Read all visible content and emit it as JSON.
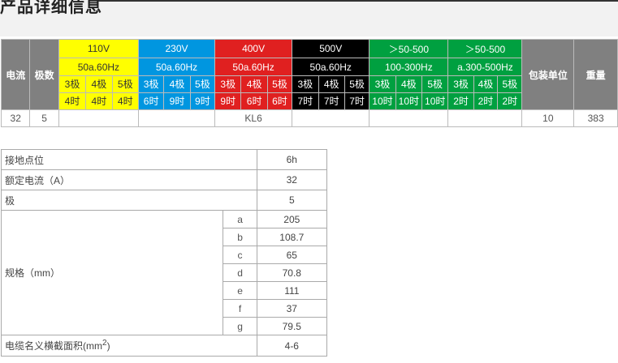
{
  "page": {
    "title": "产品详细信息"
  },
  "spec": {
    "col_current": "电流",
    "col_poles": "极数",
    "col_package": "包装单位",
    "col_weight": "重量",
    "groups": [
      {
        "line1": "110V",
        "line2": "50a.60Hz",
        "color": "#ffff00",
        "cells": [
          {
            "p": "3极",
            "h": "4时"
          },
          {
            "p": "4极",
            "h": "4时"
          },
          {
            "p": "5极",
            "h": "4时"
          }
        ]
      },
      {
        "line1": "230V",
        "line2": "50a.60Hz",
        "color": "#0096e0",
        "cells": [
          {
            "p": "3极",
            "h": "6时"
          },
          {
            "p": "4极",
            "h": "9时"
          },
          {
            "p": "5极",
            "h": "9时"
          }
        ]
      },
      {
        "line1": "400V",
        "line2": "50a.60Hz",
        "color": "#e02020",
        "cells": [
          {
            "p": "3极",
            "h": "9时"
          },
          {
            "p": "4极",
            "h": "6时"
          },
          {
            "p": "5极",
            "h": "6时"
          }
        ]
      },
      {
        "line1": "500V",
        "line2": "50a.60Hz",
        "color": "#000000",
        "cells": [
          {
            "p": "3极",
            "h": "7时"
          },
          {
            "p": "4极",
            "h": "7时"
          },
          {
            "p": "5极",
            "h": "7时"
          }
        ]
      },
      {
        "line1": "＞50-500",
        "line2": "100-300Hz",
        "color": "#00a040",
        "cells": [
          {
            "p": "3极",
            "h": "10时"
          },
          {
            "p": "4极",
            "h": "10时"
          },
          {
            "p": "5极",
            "h": "10时"
          }
        ]
      },
      {
        "line1": "＞50-500",
        "line2": "a.300-500Hz",
        "color": "#00a040",
        "cells": [
          {
            "p": "3极",
            "h": "2时"
          },
          {
            "p": "4极",
            "h": "2时"
          },
          {
            "p": "5极",
            "h": "2时"
          }
        ]
      }
    ],
    "row": {
      "current": "32",
      "poles": "5",
      "model": "KL6",
      "package": "10",
      "weight": "383"
    }
  },
  "details": {
    "grounding_label": "接地点位",
    "grounding_value": "6h",
    "rated_label": "额定电流（A）",
    "rated_value": "32",
    "pole_label": "极",
    "pole_value": "5",
    "size_label": "规格（mm）",
    "sizes": [
      {
        "k": "a",
        "v": "205"
      },
      {
        "k": "b",
        "v": "108.7"
      },
      {
        "k": "c",
        "v": "65"
      },
      {
        "k": "d",
        "v": "70.8"
      },
      {
        "k": "e",
        "v": "111"
      },
      {
        "k": "f",
        "v": "37"
      },
      {
        "k": "g",
        "v": "79.5"
      }
    ],
    "cable_label": "电缆名义横截面积(mm",
    "cable_sup": "2",
    "cable_close": ")",
    "cable_value": "4-6"
  }
}
